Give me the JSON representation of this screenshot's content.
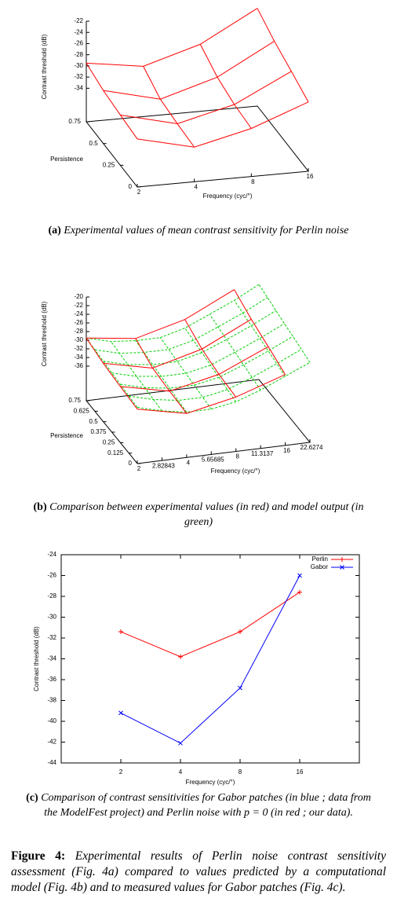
{
  "chart_data": [
    {
      "type": "surface",
      "caption_label": "(a)",
      "caption": "Experimental values of mean contrast sensitivity for Perlin noise",
      "xlabel": "Frequency (cyc/°)",
      "ylabel": "Persistence",
      "zlabel": "Contrast threshold (dB)",
      "xscale": "log",
      "xlim": [
        2,
        16
      ],
      "ylim": [
        0,
        0.75
      ],
      "zlim": [
        -40,
        -22
      ],
      "xticks": [
        2,
        4,
        8,
        16
      ],
      "yticks": [
        0,
        0.25,
        0.5,
        0.75
      ],
      "zticks": [
        -22,
        -24,
        -26,
        -28,
        -30,
        -32,
        -34
      ],
      "surfaces": [
        {
          "color": "#ff0000",
          "x": [
            2,
            4,
            8,
            16
          ],
          "y": [
            0,
            0.25,
            0.5,
            0.75
          ],
          "values": [
            [
              -31.4,
              -33.8,
              -31.4,
              -27.6
            ],
            [
              -31,
              -33.5,
              -31,
              -26
            ],
            [
              -30.5,
              -33,
              -30,
              -24.5
            ],
            [
              -29.5,
              -31,
              -28,
              -22.5
            ]
          ]
        }
      ]
    },
    {
      "type": "surface",
      "caption_label": "(b)",
      "caption": "Comparison between experimental values (in red) and model output (in green)",
      "xlabel": "Frequency (cyc/°)",
      "ylabel": "Persistence",
      "zlabel": "Contrast threshold (dB)",
      "xscale": "log",
      "xlim": [
        2,
        22.6274
      ],
      "ylim": [
        0,
        0.75
      ],
      "zlim": [
        -44,
        -20
      ],
      "xticks": [
        2,
        2.82843,
        4,
        5.65685,
        8,
        11.3137,
        16,
        22.6274
      ],
      "yticks": [
        0,
        0.125,
        0.25,
        0.375,
        0.5,
        0.625,
        0.75
      ],
      "zticks": [
        -20,
        -22,
        -24,
        -26,
        -28,
        -30,
        -32,
        -34,
        -36
      ],
      "surfaces": [
        {
          "color": "#00d000",
          "style": "dashed",
          "x": [
            2,
            2.82843,
            4,
            5.65685,
            8,
            11.3137,
            16,
            22.6274
          ],
          "y": [
            0,
            0.125,
            0.25,
            0.375,
            0.5,
            0.625,
            0.75
          ],
          "values": [
            [
              -31,
              -32.5,
              -33.5,
              -33.5,
              -32.5,
              -30.5,
              -28,
              -25.5
            ],
            [
              -30.8,
              -32.3,
              -33.2,
              -33.2,
              -32.1,
              -30,
              -27.5,
              -24.9
            ],
            [
              -30.5,
              -32,
              -32.8,
              -32.8,
              -31.7,
              -29.5,
              -27,
              -24.3
            ],
            [
              -30.3,
              -31.8,
              -32.5,
              -32.5,
              -31.3,
              -29,
              -26.5,
              -23.8
            ],
            [
              -30,
              -31.5,
              -32.2,
              -32.2,
              -30.8,
              -28.5,
              -26,
              -23.2
            ],
            [
              -29.8,
              -31.3,
              -31.8,
              -31.8,
              -30.4,
              -28,
              -25.5,
              -22.6
            ],
            [
              -29.5,
              -31,
              -31.5,
              -31.5,
              -30,
              -27.5,
              -25,
              -22
            ]
          ]
        },
        {
          "color": "#ff0000",
          "x": [
            2,
            4,
            8,
            16
          ],
          "y": [
            0,
            0.25,
            0.5,
            0.75
          ],
          "values": [
            [
              -31.4,
              -33.8,
              -31.4,
              -27.6
            ],
            [
              -31,
              -33.5,
              -31,
              -26
            ],
            [
              -30.5,
              -33,
              -30,
              -24.5
            ],
            [
              -29.5,
              -31,
              -28,
              -22.5
            ]
          ]
        }
      ]
    },
    {
      "type": "line",
      "caption_label": "(c)",
      "caption": "Comparison of contrast sensitivities for Gabor patches (in blue ; data from the ModelFest project) and Perlin noise with p = 0 (in red ; our data).",
      "xlabel": "Frequency (cyc/°)",
      "ylabel": "Contrast threshold (dB)",
      "xscale": "log",
      "x": [
        2,
        4,
        8,
        16
      ],
      "xlim": [
        1,
        32
      ],
      "xticks": [
        2,
        4,
        8,
        16
      ],
      "ylim": [
        -44,
        -24
      ],
      "yticks": [
        -44,
        -42,
        -40,
        -38,
        -36,
        -34,
        -32,
        -30,
        -28,
        -26,
        -24
      ],
      "legend": "top-right",
      "series": [
        {
          "name": "Perlin",
          "color": "#ff0000",
          "marker": "+",
          "values": [
            -31.4,
            -33.8,
            -31.4,
            -27.6
          ]
        },
        {
          "name": "Gabor",
          "color": "#0000ff",
          "marker": "x",
          "values": [
            -39.2,
            -42.1,
            -36.8,
            -26.0
          ]
        }
      ]
    }
  ],
  "figure_caption": {
    "label": "Figure 4:",
    "text": "Experimental results of Perlin noise contrast sensitivity assessment (Fig. 4a) compared to values predicted by a computational model (Fig. 4b) and to measured values for Gabor patches (Fig. 4c)."
  }
}
